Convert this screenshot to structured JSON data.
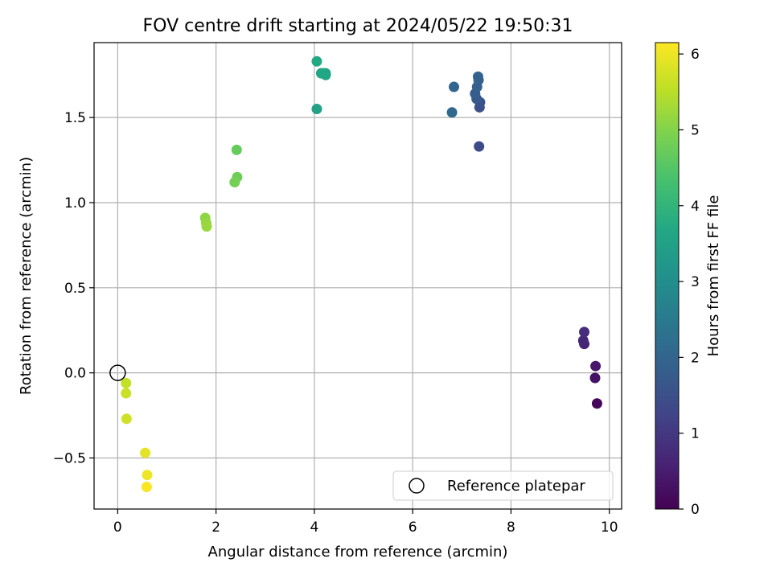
{
  "chart_data": {
    "type": "scatter",
    "title": "FOV centre drift starting at 2024/05/22 19:50:31",
    "xlabel": "Angular distance from reference (arcmin)",
    "ylabel": "Rotation from reference (arcmin)",
    "xlim": [
      -0.48,
      10.25
    ],
    "ylim": [
      -0.8,
      1.94
    ],
    "xticks": [
      0,
      2,
      4,
      6,
      8,
      10
    ],
    "xtick_labels": [
      "0",
      "2",
      "4",
      "6",
      "8",
      "10"
    ],
    "yticks": [
      -0.5,
      0.0,
      0.5,
      1.0,
      1.5
    ],
    "ytick_labels": [
      "−0.5",
      "0.0",
      "0.5",
      "1.0",
      "1.5"
    ],
    "grid": true,
    "colormap": "viridis",
    "colorbar": {
      "label": "Hours from first FF file",
      "range": [
        0,
        6.15
      ],
      "ticks": [
        0,
        1,
        2,
        3,
        4,
        5,
        6
      ],
      "tick_labels": [
        "0",
        "1",
        "2",
        "3",
        "4",
        "5",
        "6"
      ]
    },
    "legend": {
      "location": "lower-right",
      "entries": [
        "Reference platepar"
      ]
    },
    "reference_point": {
      "x": 0,
      "y": 0,
      "label": "Reference platepar"
    },
    "points": [
      {
        "x": 9.75,
        "y": -0.18,
        "hours": 0.1
      },
      {
        "x": 9.71,
        "y": -0.03,
        "hours": 0.3
      },
      {
        "x": 9.72,
        "y": 0.04,
        "hours": 0.4
      },
      {
        "x": 9.49,
        "y": 0.17,
        "hours": 0.6
      },
      {
        "x": 9.47,
        "y": 0.19,
        "hours": 0.7
      },
      {
        "x": 9.49,
        "y": 0.24,
        "hours": 0.8
      },
      {
        "x": 7.35,
        "y": 1.33,
        "hours": 1.4
      },
      {
        "x": 7.36,
        "y": 1.56,
        "hours": 1.5
      },
      {
        "x": 7.37,
        "y": 1.59,
        "hours": 1.6
      },
      {
        "x": 7.3,
        "y": 1.61,
        "hours": 1.7
      },
      {
        "x": 7.27,
        "y": 1.64,
        "hours": 1.8
      },
      {
        "x": 7.31,
        "y": 1.68,
        "hours": 1.85
      },
      {
        "x": 7.34,
        "y": 1.72,
        "hours": 1.9
      },
      {
        "x": 7.33,
        "y": 1.74,
        "hours": 1.95
      },
      {
        "x": 6.84,
        "y": 1.68,
        "hours": 2.0
      },
      {
        "x": 6.8,
        "y": 1.53,
        "hours": 2.1
      },
      {
        "x": 4.05,
        "y": 1.55,
        "hours": 3.5
      },
      {
        "x": 4.14,
        "y": 1.76,
        "hours": 3.55
      },
      {
        "x": 4.23,
        "y": 1.75,
        "hours": 3.6
      },
      {
        "x": 4.23,
        "y": 1.76,
        "hours": 3.62
      },
      {
        "x": 4.18,
        "y": 1.76,
        "hours": 3.65
      },
      {
        "x": 4.05,
        "y": 1.83,
        "hours": 3.7
      },
      {
        "x": 2.42,
        "y": 1.31,
        "hours": 4.7
      },
      {
        "x": 2.43,
        "y": 1.15,
        "hours": 4.8
      },
      {
        "x": 2.38,
        "y": 1.12,
        "hours": 4.85
      },
      {
        "x": 1.78,
        "y": 0.91,
        "hours": 5.1
      },
      {
        "x": 1.8,
        "y": 0.88,
        "hours": 5.15
      },
      {
        "x": 1.81,
        "y": 0.86,
        "hours": 5.2
      },
      {
        "x": 0.17,
        "y": -0.06,
        "hours": 5.6
      },
      {
        "x": 0.17,
        "y": -0.12,
        "hours": 5.65
      },
      {
        "x": 0.18,
        "y": -0.27,
        "hours": 5.7
      },
      {
        "x": 0.56,
        "y": -0.47,
        "hours": 5.9
      },
      {
        "x": 0.6,
        "y": -0.6,
        "hours": 6.0
      },
      {
        "x": 0.59,
        "y": -0.67,
        "hours": 6.1
      }
    ]
  }
}
